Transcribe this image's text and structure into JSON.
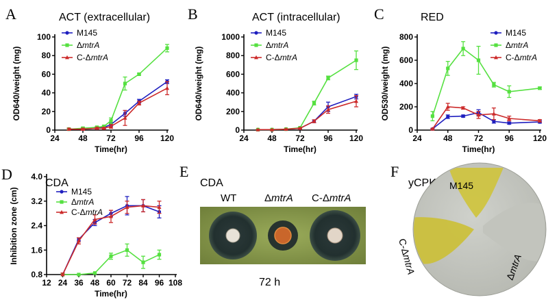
{
  "colors": {
    "M145": "#1f1fbf",
    "dmtrA": "#55e040",
    "CdmtrA": "#cc2a2a"
  },
  "chart_data": [
    {
      "id": "A",
      "type": "line",
      "panel_letter": "A",
      "title": "ACT (extracellular)",
      "xlabel": "Time(hr)",
      "ylabel": "OD640/weight (mg)",
      "xlim": [
        24,
        120
      ],
      "ylim": [
        0,
        100
      ],
      "xticks": [
        24,
        48,
        72,
        96,
        120
      ],
      "yticks": [
        0,
        20,
        40,
        60,
        80,
        100
      ],
      "legend": {
        "placement": "top-left"
      },
      "series": [
        {
          "key": "M145",
          "name": "M145",
          "marker": "circle",
          "x": [
            36,
            48,
            60,
            66,
            72,
            84,
            96,
            120
          ],
          "y": [
            1,
            1,
            2,
            3,
            6,
            18,
            31,
            52
          ],
          "err": [
            1,
            1,
            1,
            1,
            2,
            3,
            2,
            2
          ]
        },
        {
          "key": "dmtrA",
          "name_prefix": "Δ",
          "name_italic": "mtrA",
          "marker": "square",
          "x": [
            36,
            48,
            60,
            66,
            72,
            84,
            96,
            120
          ],
          "y": [
            1,
            2,
            3,
            4,
            10,
            50,
            60,
            88
          ],
          "err": [
            1,
            1,
            1,
            1,
            3,
            7,
            1,
            4
          ]
        },
        {
          "key": "CdmtrA",
          "name_prefix": "C-Δ",
          "name_italic": "mtrA",
          "marker": "triangle",
          "x": [
            36,
            48,
            60,
            66,
            72,
            84,
            96,
            120
          ],
          "y": [
            1,
            1,
            2,
            2,
            4,
            13,
            29,
            45
          ],
          "err": [
            1,
            1,
            1,
            1,
            2,
            8,
            2,
            7
          ]
        }
      ]
    },
    {
      "id": "B",
      "type": "line",
      "panel_letter": "B",
      "title": "ACT (intracellular)",
      "xlabel": "Time(hr)",
      "ylabel": "OD640/weight (mg)",
      "xlim": [
        24,
        120
      ],
      "ylim": [
        0,
        1000
      ],
      "xticks": [
        24,
        48,
        72,
        96,
        120
      ],
      "yticks": [
        0,
        200,
        400,
        600,
        800,
        1000
      ],
      "legend": {
        "placement": "top-left"
      },
      "series": [
        {
          "key": "M145",
          "name": "M145",
          "marker": "circle",
          "x": [
            36,
            48,
            60,
            72,
            84,
            96,
            120
          ],
          "y": [
            5,
            5,
            10,
            20,
            95,
            250,
            360
          ],
          "err": [
            2,
            2,
            3,
            5,
            15,
            50,
            25
          ]
        },
        {
          "key": "dmtrA",
          "name_prefix": "Δ",
          "name_italic": "mtrA",
          "marker": "square",
          "x": [
            36,
            48,
            60,
            72,
            84,
            96,
            120
          ],
          "y": [
            5,
            5,
            10,
            25,
            290,
            560,
            750
          ],
          "err": [
            2,
            2,
            3,
            5,
            20,
            20,
            100
          ]
        },
        {
          "key": "CdmtrA",
          "name_prefix": "C-Δ",
          "name_italic": "mtrA",
          "marker": "triangle",
          "x": [
            36,
            48,
            60,
            72,
            84,
            96,
            120
          ],
          "y": [
            5,
            5,
            10,
            20,
            95,
            220,
            310
          ],
          "err": [
            2,
            2,
            3,
            5,
            15,
            40,
            60
          ]
        }
      ]
    },
    {
      "id": "C",
      "type": "line",
      "panel_letter": "C",
      "title": "RED",
      "xlabel": "Time(hr)",
      "ylabel": "OD530/weight (mg)",
      "xlim": [
        24,
        120
      ],
      "ylim": [
        0,
        800
      ],
      "xticks": [
        24,
        48,
        72,
        96,
        120
      ],
      "yticks": [
        0,
        200,
        400,
        600,
        800
      ],
      "legend": {
        "placement": "top-right"
      },
      "series": [
        {
          "key": "M145",
          "name": "M145",
          "marker": "circle",
          "x": [
            36,
            48,
            60,
            72,
            84,
            96,
            120
          ],
          "y": [
            10,
            115,
            120,
            150,
            75,
            60,
            70
          ],
          "err": [
            5,
            15,
            10,
            25,
            15,
            10,
            10
          ]
        },
        {
          "key": "dmtrA",
          "name_prefix": "Δ",
          "name_italic": "mtrA",
          "marker": "square",
          "x": [
            36,
            48,
            60,
            72,
            84,
            96,
            120
          ],
          "y": [
            120,
            530,
            700,
            600,
            390,
            330,
            360
          ],
          "err": [
            40,
            60,
            60,
            120,
            20,
            50,
            10
          ]
        },
        {
          "key": "CdmtrA",
          "name_prefix": "C-Δ",
          "name_italic": "mtrA",
          "marker": "triangle",
          "x": [
            36,
            48,
            60,
            72,
            84,
            96,
            120
          ],
          "y": [
            10,
            200,
            190,
            130,
            140,
            100,
            80
          ],
          "err": [
            5,
            30,
            10,
            30,
            50,
            20,
            10
          ]
        }
      ]
    },
    {
      "id": "D",
      "type": "line",
      "panel_letter": "D",
      "title": "CDA",
      "xlabel": "Time(hr)",
      "ylabel": "Inhibition zone (cm)",
      "xlim": [
        12,
        108
      ],
      "ylim": [
        0.8,
        4.0
      ],
      "xticks": [
        12,
        24,
        36,
        48,
        60,
        72,
        84,
        96,
        108
      ],
      "yticks": [
        0.8,
        1.6,
        2.4,
        3.2,
        4.0
      ],
      "ytick_labels": [
        "0.8",
        "1.6",
        "2.4",
        "3.2",
        "4.0"
      ],
      "legend": {
        "placement": "top-left"
      },
      "series": [
        {
          "key": "M145",
          "name": "M145",
          "marker": "circle",
          "x": [
            24,
            36,
            48,
            60,
            72,
            84,
            96
          ],
          "y": [
            0.8,
            1.95,
            2.5,
            2.8,
            3.05,
            3.05,
            2.85
          ],
          "err": [
            0.05,
            0.05,
            0.1,
            0.1,
            0.3,
            0.2,
            0.2
          ]
        },
        {
          "key": "dmtrA",
          "name_prefix": "Δ",
          "name_italic": "mtrA",
          "marker": "square",
          "x": [
            24,
            36,
            48,
            60,
            72,
            84,
            96
          ],
          "y": [
            0.8,
            0.8,
            0.85,
            1.4,
            1.6,
            1.2,
            1.45
          ],
          "err": [
            0,
            0,
            0,
            0.1,
            0.2,
            0.2,
            0.15
          ]
        },
        {
          "key": "CdmtrA",
          "name_prefix": "C-Δ",
          "name_italic": "mtrA",
          "marker": "triangle",
          "x": [
            24,
            36,
            48,
            60,
            72,
            84,
            96
          ],
          "y": [
            0.8,
            1.9,
            2.6,
            2.7,
            3.0,
            3.05,
            3.0
          ],
          "err": [
            0.05,
            0.1,
            0.15,
            0.2,
            0.2,
            0.2,
            0.2
          ]
        }
      ]
    }
  ],
  "panelE": {
    "letter": "E",
    "title": "CDA",
    "labels": [
      {
        "prefix": "",
        "italic": "",
        "plain": "WT"
      },
      {
        "prefix": "Δ",
        "italic": "mtrA",
        "plain": ""
      },
      {
        "prefix": "C-Δ",
        "italic": "mtrA",
        "plain": ""
      }
    ],
    "caption": "72 h"
  },
  "panelF": {
    "letter": "F",
    "title": "yCPK",
    "labels": [
      {
        "prefix": "",
        "italic": "",
        "plain": "M145"
      },
      {
        "prefix": "C-Δ",
        "italic": "mtrA",
        "plain": ""
      },
      {
        "prefix": "Δ",
        "italic": "mtrA",
        "plain": ""
      }
    ]
  }
}
